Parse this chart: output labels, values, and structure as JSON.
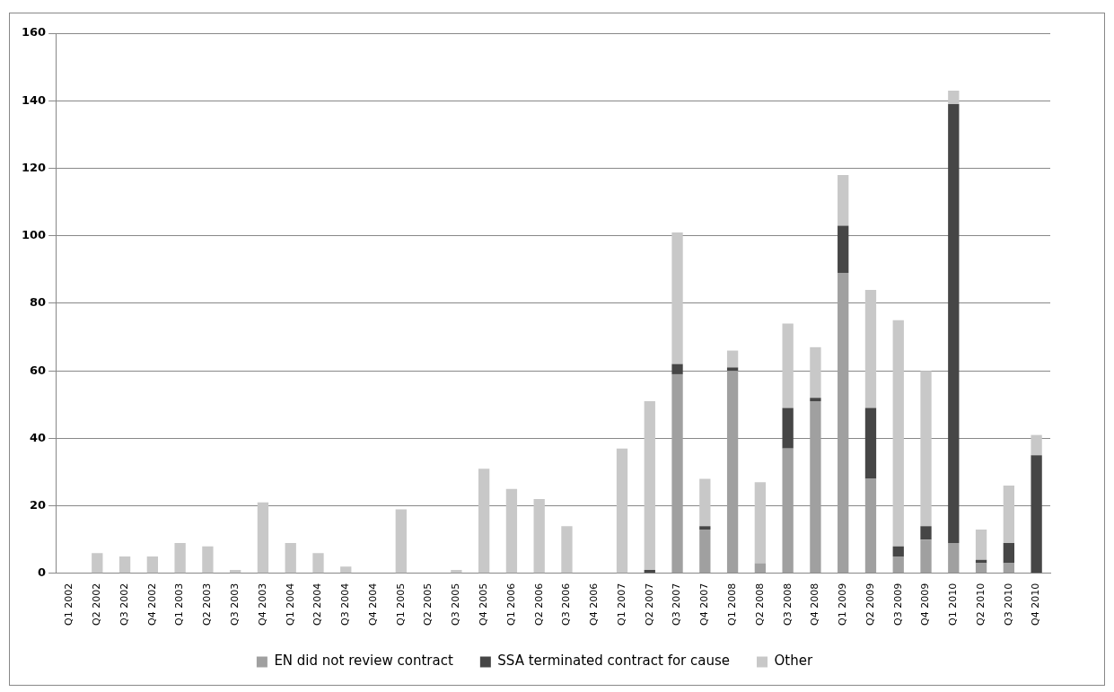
{
  "chart_data": {
    "type": "bar",
    "stacked": true,
    "grid": "y",
    "legend": "bottom",
    "categories": [
      "Q1 2002",
      "Q2 2002",
      "Q3 2002",
      "Q4 2002",
      "Q1 2003",
      "Q2 2003",
      "Q3 2003",
      "Q4 2003",
      "Q1 2004",
      "Q2 2004",
      "Q3 2004",
      "Q4 2004",
      "Q1 2005",
      "Q2 2005",
      "Q3 2005",
      "Q4 2005",
      "Q1 2006",
      "Q2 2006",
      "Q3 2006",
      "Q4 2006",
      "Q1 2007",
      "Q2 2007",
      "Q3 2007",
      "Q4 2007",
      "Q1 2008",
      "Q2 2008",
      "Q3 2008",
      "Q4 2008",
      "Q1 2009",
      "Q2 2009",
      "Q3 2009",
      "Q4 2009",
      "Q1 2010",
      "Q2 2010",
      "Q3 2010",
      "Q4 2010"
    ],
    "series": [
      {
        "name": "EN did not review contract",
        "color": "#a0a0a0",
        "values": [
          0,
          0,
          0,
          0,
          0,
          0,
          0,
          0,
          0,
          0,
          0,
          0,
          0,
          0,
          0,
          0,
          0,
          0,
          0,
          0,
          0,
          0,
          59,
          13,
          60,
          3,
          37,
          51,
          89,
          28,
          5,
          10,
          9,
          3,
          3,
          0
        ]
      },
      {
        "name": "SSA terminated contract for cause",
        "color": "#464646",
        "values": [
          0,
          0,
          0,
          0,
          0,
          0,
          0,
          0,
          0,
          0,
          0,
          0,
          0,
          0,
          0,
          0,
          0,
          0,
          0,
          0,
          0,
          1,
          3,
          1,
          1,
          0,
          12,
          1,
          14,
          21,
          3,
          4,
          130,
          1,
          6,
          35
        ]
      },
      {
        "name": "Other",
        "color": "#c8c8c8",
        "values": [
          0,
          6,
          5,
          5,
          9,
          8,
          1,
          21,
          9,
          6,
          2,
          0,
          19,
          0,
          1,
          31,
          25,
          22,
          14,
          0,
          37,
          50,
          39,
          14,
          5,
          24,
          25,
          15,
          15,
          35,
          67,
          46,
          4,
          9,
          17,
          6
        ]
      }
    ],
    "ylim": [
      0,
      160
    ],
    "yticks": [
      0,
      20,
      40,
      60,
      80,
      100,
      120,
      140,
      160
    ]
  }
}
